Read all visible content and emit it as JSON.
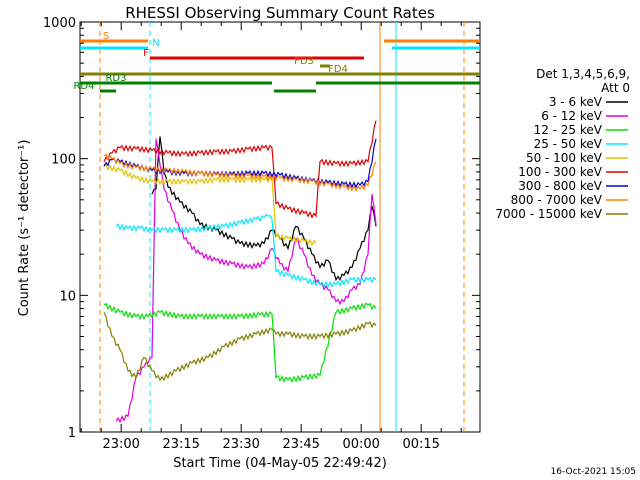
{
  "chart_data": {
    "type": "line",
    "title": "RHESSI Observing Summary Count Rates",
    "xlabel": "Start Time (04-May-05 22:49:42)",
    "ylabel": "Count Rate (s⁻¹ detector⁻¹)",
    "ylog": true,
    "ylim": [
      1,
      1000
    ],
    "xlim_minutes": [
      0,
      100
    ],
    "x_ticks": [
      {
        "minutes": 10.3,
        "label": "23:00"
      },
      {
        "minutes": 25.3,
        "label": "23:15"
      },
      {
        "minutes": 40.3,
        "label": "23:30"
      },
      {
        "minutes": 55.3,
        "label": "23:45"
      },
      {
        "minutes": 70.3,
        "label": "00:00"
      },
      {
        "minutes": 85.3,
        "label": "00:15"
      }
    ],
    "y_ticks": [
      {
        "value": 1,
        "label": "1"
      },
      {
        "value": 10,
        "label": "10"
      },
      {
        "value": 100,
        "label": "100"
      },
      {
        "value": 1000,
        "label": "1000"
      }
    ],
    "legend": {
      "position": "right",
      "header": [
        "Det 1,3,4,5,6,9,",
        "Att 0"
      ],
      "entries": [
        {
          "label": "3 - 6 keV",
          "color": "#000000"
        },
        {
          "label": "6 - 12 keV",
          "color": "#e000e0"
        },
        {
          "label": "12 - 25 keV",
          "color": "#00e000"
        },
        {
          "label": "25 - 50 keV",
          "color": "#00e8ff"
        },
        {
          "label": "50 - 100 keV",
          "color": "#e0c000"
        },
        {
          "label": "100 - 300 keV",
          "color": "#e00000"
        },
        {
          "label": "300 - 800 keV",
          "color": "#0000e0"
        },
        {
          "label": "800 - 7000 keV",
          "color": "#ff8000"
        },
        {
          "label": "7000 - 15000 keV",
          "color": "#808000"
        }
      ]
    },
    "flags": [
      {
        "label": "S",
        "color": "#ff8000",
        "segments": [
          [
            0,
            17
          ],
          [
            76,
            100
          ]
        ]
      },
      {
        "label": "N",
        "color": "#00e8ff",
        "segments": [
          [
            0,
            17
          ],
          [
            78,
            100
          ]
        ]
      },
      {
        "label": "F",
        "color": "#e00000",
        "segments": [
          [
            17.5,
            71
          ]
        ]
      },
      {
        "label": "FD3",
        "color": "#808000",
        "segments": [
          [
            60,
            62.5
          ]
        ]
      },
      {
        "label": "FD4",
        "color": "#808000",
        "segments": [
          [
            0,
            100
          ]
        ]
      },
      {
        "label": "RD3",
        "color": "#008000",
        "segments": [
          [
            0,
            48
          ],
          [
            59,
            100
          ]
        ]
      },
      {
        "label": "RD4",
        "color": "#008000",
        "segments": [
          [
            5,
            9
          ],
          [
            48.5,
            59
          ]
        ]
      }
    ],
    "vertical_markers": [
      {
        "minutes": 5,
        "color": "#ff8000",
        "style": "dashed"
      },
      {
        "minutes": 17.5,
        "color": "#00e8ff",
        "style": "dashed"
      },
      {
        "minutes": 75,
        "color": "#ff8000",
        "style": "solid"
      },
      {
        "minutes": 79,
        "color": "#00e8ff",
        "style": "solid"
      },
      {
        "minutes": 96,
        "color": "#ff8000",
        "style": "dashed"
      }
    ],
    "series": [
      {
        "name": "3 - 6 keV",
        "color": "#000000",
        "x": [
          18,
          19,
          20,
          21,
          22,
          25,
          28,
          30,
          34,
          38,
          40,
          44,
          46,
          48,
          50,
          52,
          54,
          56,
          58,
          60,
          62,
          64,
          66,
          68,
          70,
          72,
          73,
          74
        ],
        "y": [
          55,
          60,
          145,
          80,
          62,
          48,
          40,
          33,
          30,
          26,
          24,
          23,
          24,
          30,
          26,
          22,
          32,
          26,
          20,
          16,
          18,
          13,
          14,
          16,
          22,
          30,
          45,
          32
        ]
      },
      {
        "name": "6 - 12 keV",
        "color": "#e000e0",
        "x": [
          9,
          12,
          14,
          16,
          17,
          18,
          19,
          20,
          21,
          23,
          25,
          27,
          30,
          34,
          38,
          42,
          46,
          48,
          50,
          52,
          54,
          56,
          58,
          60,
          62,
          64,
          66,
          68,
          70,
          72,
          73,
          74
        ],
        "y": [
          1.2,
          1.3,
          2.5,
          3.0,
          3.2,
          3.5,
          140,
          90,
          60,
          42,
          30,
          24,
          20,
          18,
          17,
          16,
          17,
          22,
          17,
          15,
          26,
          20,
          14,
          12,
          11,
          9,
          9,
          11,
          12,
          20,
          55,
          33
        ]
      },
      {
        "name": "12 - 25 keV",
        "color": "#00e000",
        "x": [
          6,
          10,
          14,
          17,
          20,
          25,
          30,
          35,
          40,
          45,
          48,
          49,
          52,
          56,
          60,
          64,
          68,
          72,
          74
        ],
        "y": [
          8.5,
          7.5,
          7.0,
          7.0,
          7.5,
          7.0,
          7.0,
          7.0,
          7.0,
          7.2,
          7.3,
          2.5,
          2.4,
          2.5,
          2.6,
          7.5,
          8.0,
          8.5,
          8.0
        ]
      },
      {
        "name": "25 - 50 keV",
        "color": "#00e8ff",
        "x": [
          9,
          12,
          15,
          18,
          21,
          24,
          28,
          32,
          36,
          40,
          44,
          46,
          47,
          48,
          49,
          52,
          56,
          60,
          64,
          68,
          72,
          74
        ],
        "y": [
          32,
          31,
          31,
          30,
          30,
          30,
          30,
          31,
          32,
          34,
          36,
          37,
          38,
          36,
          15,
          14,
          13,
          12,
          12,
          13,
          13,
          13
        ]
      },
      {
        "name": "50 - 100 keV",
        "color": "#e0c000",
        "x": [
          6,
          10,
          14,
          18,
          22,
          26,
          30,
          34,
          38,
          42,
          46,
          48,
          49,
          52,
          56,
          59
        ],
        "y": [
          88,
          82,
          72,
          68,
          68,
          68,
          68,
          70,
          70,
          70,
          70,
          70,
          27,
          26,
          25,
          24
        ]
      },
      {
        "name": "100 - 300 keV",
        "color": "#e00000",
        "x": [
          6,
          8,
          10,
          14,
          18,
          22,
          26,
          30,
          34,
          38,
          42,
          46,
          48,
          49,
          52,
          56,
          59,
          60,
          64,
          68,
          72,
          74
        ],
        "y": [
          95,
          110,
          120,
          118,
          115,
          110,
          108,
          110,
          112,
          113,
          117,
          120,
          120,
          47,
          43,
          40,
          38,
          95,
          92,
          92,
          95,
          190
        ]
      },
      {
        "name": "300 - 800 keV",
        "color": "#0000e0",
        "x": [
          6,
          8,
          10,
          14,
          18,
          22,
          26,
          30,
          34,
          38,
          42,
          46,
          50,
          54,
          58,
          62,
          66,
          70,
          72,
          74
        ],
        "y": [
          88,
          98,
          95,
          88,
          82,
          80,
          78,
          78,
          77,
          77,
          78,
          78,
          76,
          72,
          69,
          67,
          65,
          64,
          68,
          140
        ]
      },
      {
        "name": "800 - 7000 keV",
        "color": "#ff8000",
        "x": [
          6,
          8,
          10,
          14,
          18,
          22,
          26,
          30,
          34,
          38,
          42,
          46,
          50,
          54,
          58,
          62,
          66,
          70,
          72,
          74
        ],
        "y": [
          105,
          100,
          92,
          86,
          84,
          82,
          80,
          78,
          76,
          75,
          75,
          74,
          72,
          70,
          68,
          65,
          62,
          60,
          64,
          95
        ]
      },
      {
        "name": "7000 - 15000 keV",
        "color": "#808000",
        "x": [
          6,
          8,
          10,
          12,
          14,
          16,
          18,
          20,
          24,
          28,
          32,
          36,
          40,
          44,
          48,
          49,
          52,
          56,
          60,
          64,
          68,
          72,
          74
        ],
        "y": [
          7.5,
          5.0,
          4.0,
          2.8,
          2.5,
          3.5,
          2.8,
          2.4,
          2.8,
          3.2,
          3.5,
          4.2,
          4.8,
          5.2,
          5.6,
          5.2,
          5.2,
          5.0,
          5.0,
          5.2,
          5.5,
          6.2,
          6.0
        ]
      }
    ]
  },
  "footer": {
    "timestamp": "16-Oct-2021 15:05"
  }
}
